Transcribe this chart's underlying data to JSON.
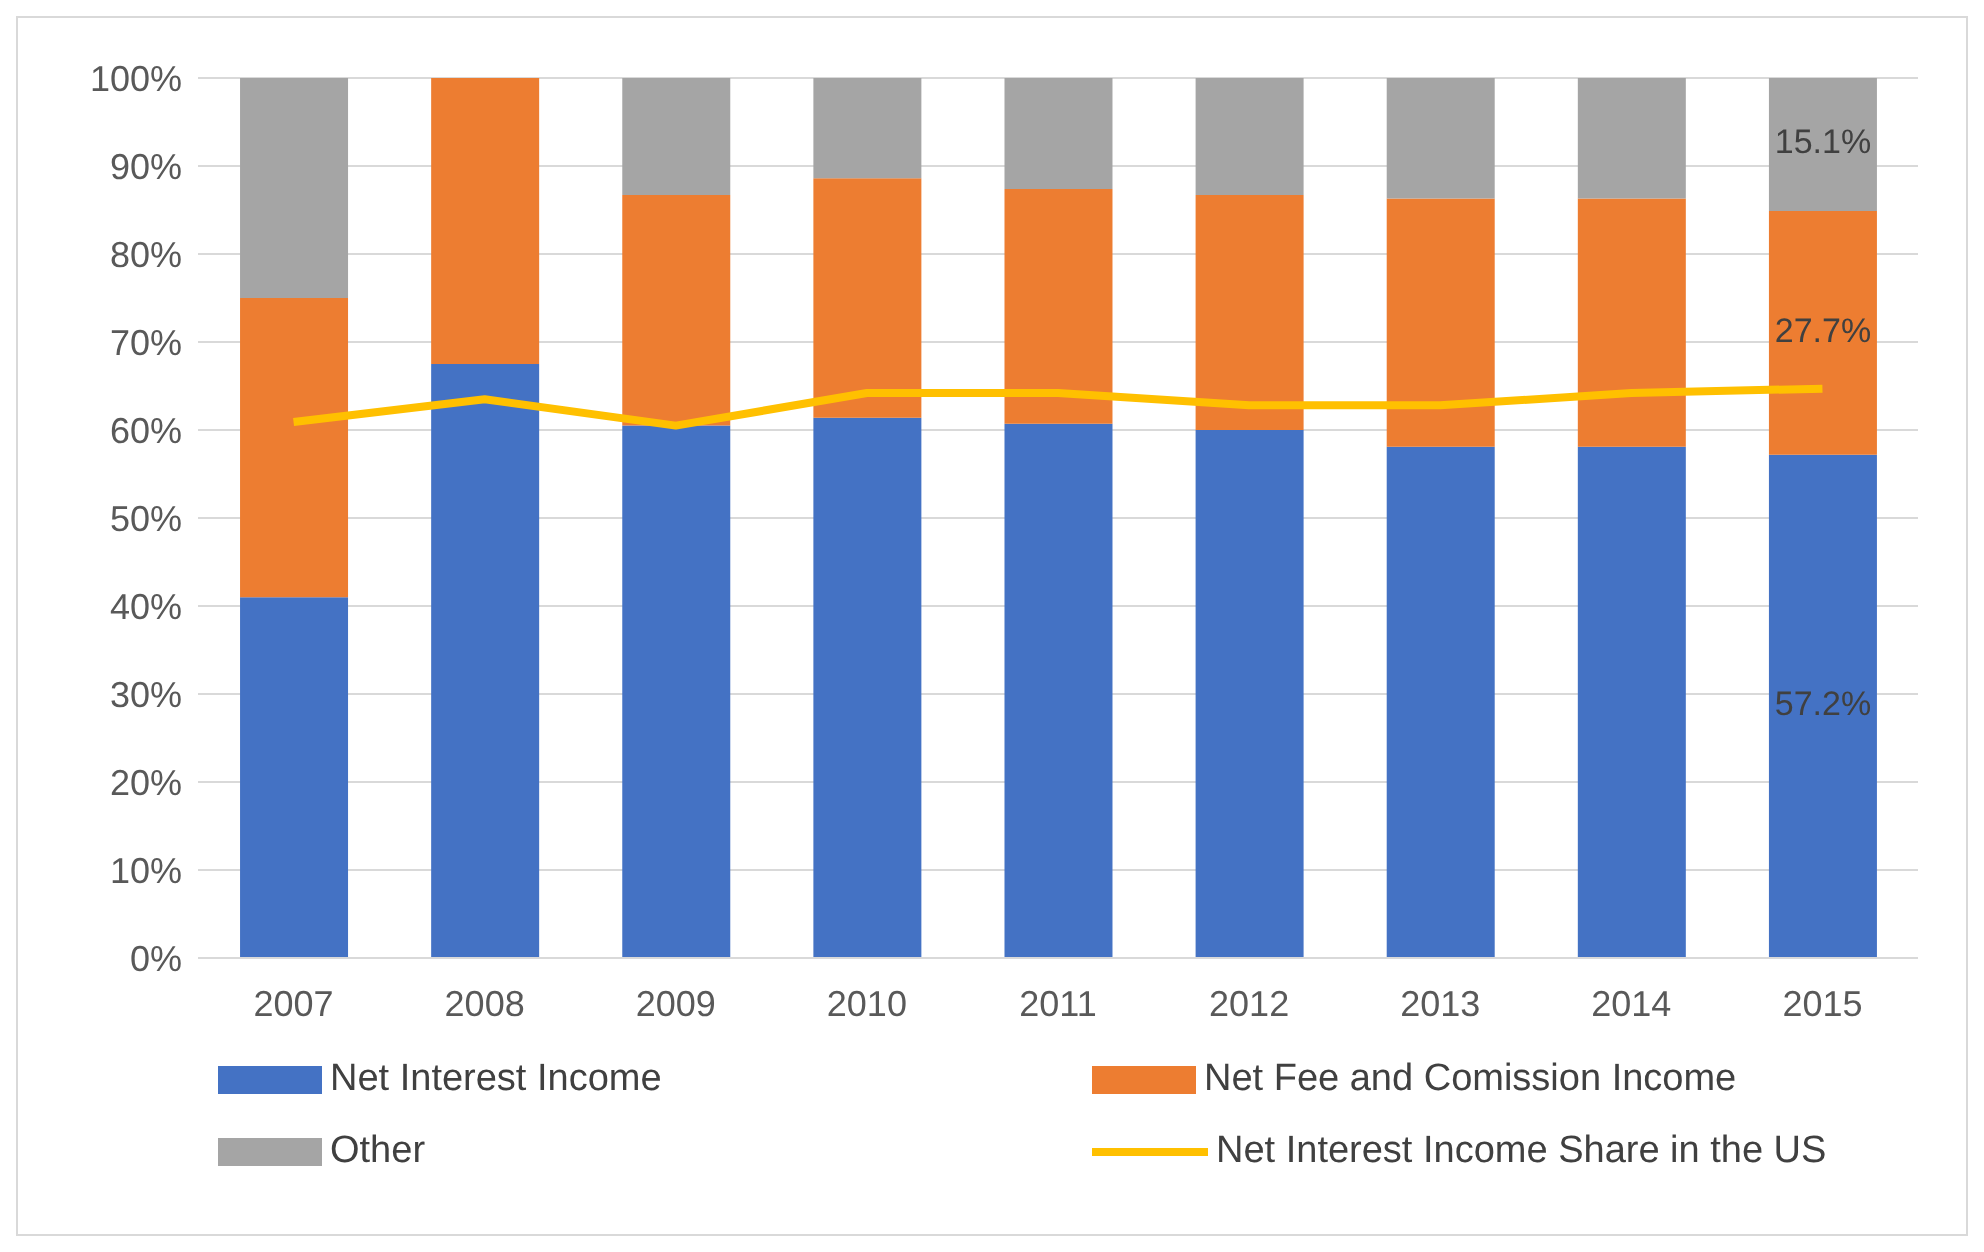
{
  "chart_data": {
    "type": "bar",
    "stacked": true,
    "categories": [
      "2007",
      "2008",
      "2009",
      "2010",
      "2011",
      "2012",
      "2013",
      "2014",
      "2015"
    ],
    "ylim": [
      0,
      100
    ],
    "yticks": [
      {
        "value": 0,
        "label": "0%"
      },
      {
        "value": 10,
        "label": "10%"
      },
      {
        "value": 20,
        "label": "20%"
      },
      {
        "value": 30,
        "label": "30%"
      },
      {
        "value": 40,
        "label": "40%"
      },
      {
        "value": 50,
        "label": "50%"
      },
      {
        "value": 60,
        "label": "60%"
      },
      {
        "value": 70,
        "label": "70%"
      },
      {
        "value": 80,
        "label": "80%"
      },
      {
        "value": 90,
        "label": "90%"
      },
      {
        "value": 100,
        "label": "100%"
      }
    ],
    "grid": "y",
    "legend": "bottom",
    "marker": "none",
    "line_style": "solid",
    "series": [
      {
        "name": "Net Interest Income",
        "color": "#4472c4",
        "values": [
          41,
          67.5,
          60.5,
          61.4,
          60.7,
          60,
          58.1,
          58.1,
          57.2
        ],
        "value_labels": [
          null,
          null,
          null,
          null,
          null,
          null,
          null,
          null,
          "57.2%"
        ]
      },
      {
        "name": "Net Fee and Comission Income",
        "color": "#ed7d31",
        "values": [
          34,
          32.5,
          26.2,
          27.2,
          26.7,
          26.7,
          28.2,
          28.2,
          27.7
        ],
        "value_labels": [
          null,
          null,
          null,
          null,
          null,
          null,
          null,
          null,
          "27.7%"
        ]
      },
      {
        "name": "Other",
        "color": "#a5a5a5",
        "values": [
          25,
          0,
          13.3,
          11.4,
          12.6,
          13.3,
          13.7,
          13.7,
          15.1
        ],
        "value_labels": [
          null,
          null,
          null,
          null,
          null,
          null,
          null,
          null,
          "15.1%"
        ]
      },
      {
        "name": "Net Interest Income Share in the US",
        "type": "line",
        "color": "#ffc000",
        "values": [
          60.9,
          63.5,
          60.5,
          64.2,
          64.2,
          62.8,
          62.8,
          64.2,
          64.7
        ]
      }
    ]
  }
}
